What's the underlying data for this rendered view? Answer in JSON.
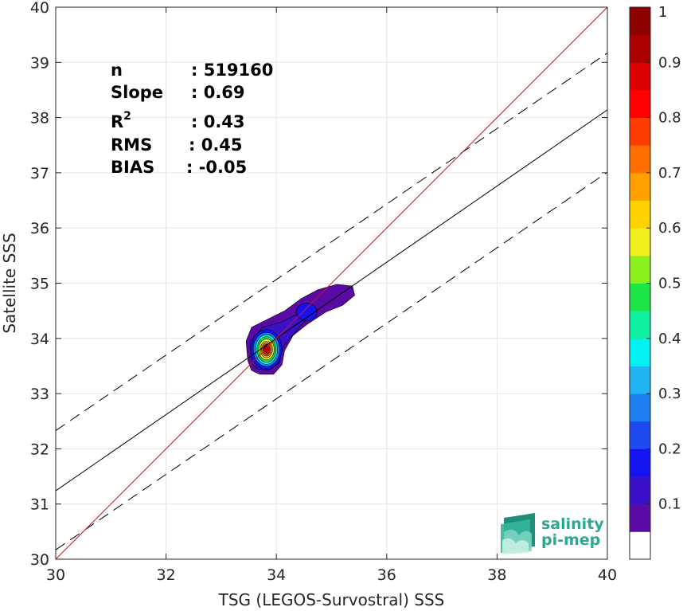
{
  "chart_data": {
    "type": "scatter",
    "xlabel": "TSG (LEGOS-Survostral) SSS",
    "ylabel": "Satellite SSS",
    "xlim": [
      30,
      40
    ],
    "ylim": [
      30,
      40
    ],
    "x_ticks": [
      30,
      32,
      34,
      36,
      38,
      40
    ],
    "y_ticks": [
      30,
      31,
      32,
      33,
      34,
      35,
      36,
      37,
      38,
      39,
      40
    ],
    "grid": true,
    "stats": [
      {
        "key": "n",
        "sep": ":",
        "value": "519160"
      },
      {
        "key": "Slope",
        "sep": ":",
        "value": "0.69"
      },
      {
        "key": "R",
        "sup": "2",
        "sep": ":",
        "value": "0.43"
      },
      {
        "key": "RMS",
        "sep": ":",
        "value": "0.45"
      },
      {
        "key": "BIAS",
        "sep": ":",
        "value": "-0.05"
      }
    ],
    "lines": {
      "identity": {
        "x": [
          30,
          40
        ],
        "y": [
          30,
          40
        ],
        "color": "#ff0000"
      },
      "regression": {
        "x": [
          30,
          40
        ],
        "y": [
          31.24,
          38.14
        ],
        "color": "#000000"
      },
      "upper_bound": {
        "x": [
          30,
          40
        ],
        "y": [
          32.33,
          39.17
        ],
        "color": "#000000",
        "style": "dashed"
      },
      "lower_bound": {
        "x": [
          30,
          40
        ],
        "y": [
          30.17,
          37.01
        ],
        "color": "#000000",
        "style": "dashed"
      }
    },
    "density_center": {
      "x": 33.82,
      "y": 33.8
    },
    "colorbar": {
      "min": 0,
      "max": 1,
      "ticks": [
        "0.1",
        "0.2",
        "0.3",
        "0.4",
        "0.5",
        "0.6",
        "0.7",
        "0.8",
        "0.9",
        "1"
      ],
      "colors": [
        "#ffffff",
        "#5a0aa5",
        "#3a10c8",
        "#1414f0",
        "#1f4af0",
        "#1e7ff0",
        "#22b4f2",
        "#05f0f0",
        "#0ff0a0",
        "#1ee646",
        "#8cf01e",
        "#f0f01e",
        "#ffd200",
        "#ffa000",
        "#ff6e00",
        "#ff3c00",
        "#ff0000",
        "#dc0000",
        "#aa0000",
        "#8c0000"
      ]
    }
  },
  "logo": {
    "line1": "salinity",
    "line2": "pi-mep",
    "color": "#2aa891"
  }
}
